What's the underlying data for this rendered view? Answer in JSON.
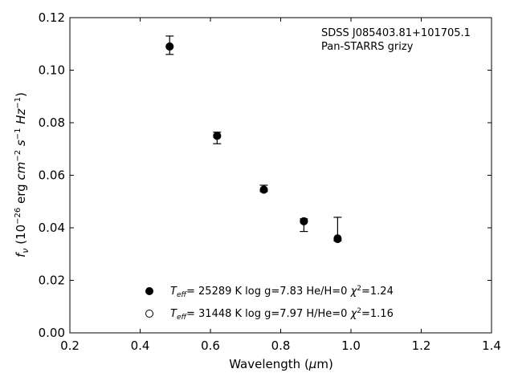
{
  "chart_data": {
    "type": "scatter",
    "title": "",
    "xlabel": "Wavelength (μm)",
    "ylabel": "f_ν (10^-26 erg cm^-2 s^-1 Hz^-1)",
    "xlim": [
      0.2,
      1.4
    ],
    "ylim": [
      0.0,
      0.12
    ],
    "xticks": [
      "0.2",
      "0.4",
      "0.6",
      "0.8",
      "1.0",
      "1.2",
      "1.4"
    ],
    "yticks": [
      "0.00",
      "0.02",
      "0.04",
      "0.06",
      "0.08",
      "0.10",
      "0.12"
    ],
    "annotation": [
      "SDSS J085403.81+101705.1",
      "Pan-STARRS grizy"
    ],
    "observed": {
      "x": [
        0.484,
        0.619,
        0.752,
        0.866,
        0.962
      ],
      "y": [
        0.1095,
        0.0742,
        0.055,
        0.041,
        0.0395
      ],
      "err_low": [
        0.0035,
        0.0022,
        0.0012,
        0.0024,
        0.0045
      ],
      "err_high": [
        0.0035,
        0.0022,
        0.0012,
        0.0024,
        0.0045
      ]
    },
    "series": [
      {
        "marker": "filled",
        "label": "T_eff= 25289 K  log g=7.83  He/H=0  χ²=1.24",
        "x": [
          0.484,
          0.619,
          0.752,
          0.866,
          0.962
        ],
        "y": [
          0.109,
          0.075,
          0.0545,
          0.0425,
          0.0357
        ]
      },
      {
        "marker": "open",
        "label": "T_eff= 31448 K  log g=7.97  H/He=0  χ²=1.16",
        "x": [
          0.484,
          0.619,
          0.752,
          0.866,
          0.962
        ],
        "y": [
          0.109,
          0.075,
          0.0545,
          0.0425,
          0.036
        ]
      }
    ],
    "legend_position": "lower-center",
    "grid": false
  }
}
